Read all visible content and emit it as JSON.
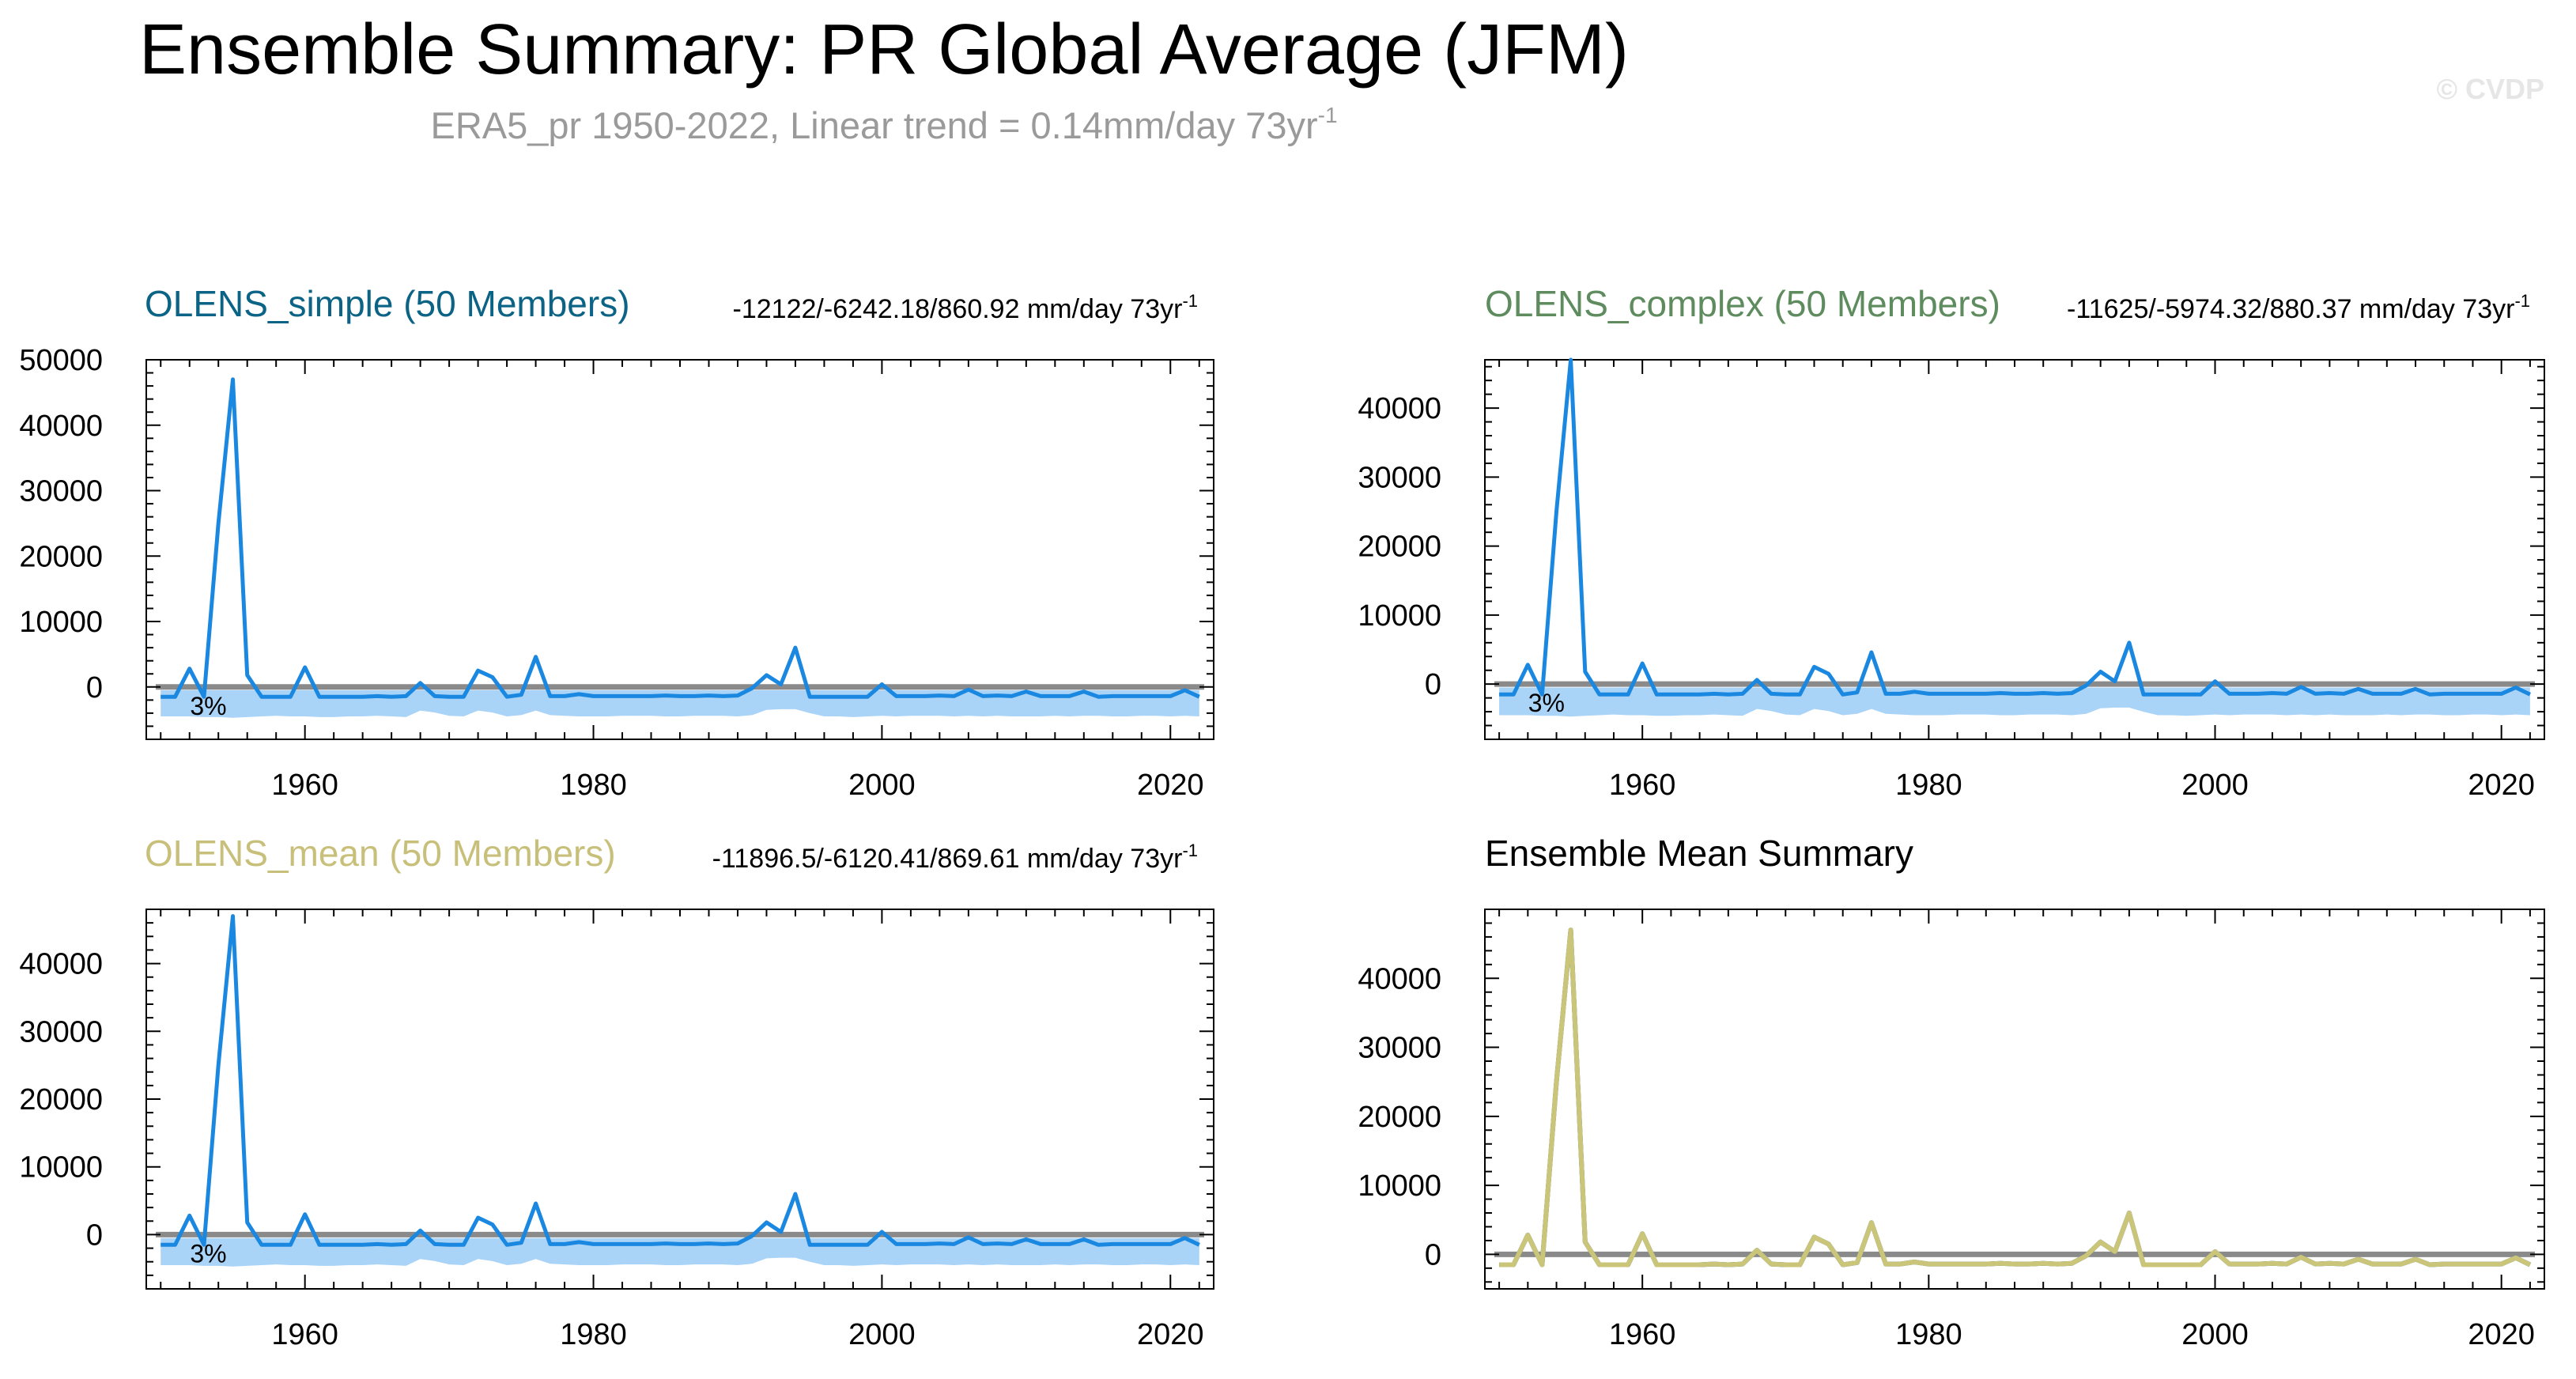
{
  "title": "Ensemble Summary: PR Global Average (JFM)",
  "subtitle": {
    "text": "ERA5_pr 1950-2022, Linear trend = 0.14mm/day 73yr",
    "sup": "-1"
  },
  "watermark": "© CVDP",
  "colors": {
    "simple": "#0b6386",
    "complex": "#5e8c5e",
    "mean": "#c8c07a",
    "mean_line": "#cbc57a",
    "obs_line": "#1a88e0",
    "band": "#a9d3f7",
    "zero_line": "#8a8a8a",
    "subtitle": "#9a9a9a",
    "watermark": "#e6e6e6"
  },
  "chart_data": [
    {
      "type": "line",
      "title": "OLENS_simple (50 Members)",
      "title_color": "simple",
      "trend_text": "-12122/-6242.18/860.92 mm/day 73yr",
      "trend_sup": "-1",
      "pct_label": "3%",
      "xlim": [
        1949,
        2023
      ],
      "ylim": [
        -8000,
        50000
      ],
      "yticks": [
        0,
        10000,
        20000,
        30000,
        40000,
        50000
      ],
      "xticks": [
        1960,
        1980,
        2000,
        2020
      ],
      "series": [
        {
          "name": "ERA5_pr",
          "source": "obs"
        }
      ]
    },
    {
      "type": "line",
      "title": "OLENS_complex (50 Members)",
      "title_color": "complex",
      "trend_text": "-11625/-5974.32/880.37 mm/day 73yr",
      "trend_sup": "-1",
      "pct_label": "3%",
      "xlim": [
        1949,
        2023
      ],
      "ylim": [
        -8000,
        47000
      ],
      "yticks": [
        0,
        10000,
        20000,
        30000,
        40000
      ],
      "xticks": [
        1960,
        1980,
        2000,
        2020
      ],
      "series": [
        {
          "name": "ERA5_pr",
          "source": "obs"
        }
      ]
    },
    {
      "type": "line",
      "title": "OLENS_mean (50 Members)",
      "title_color": "mean",
      "trend_text": "-11896.5/-6120.41/869.61 mm/day 73yr",
      "trend_sup": "-1",
      "pct_label": "3%",
      "xlim": [
        1949,
        2023
      ],
      "ylim": [
        -8000,
        48000
      ],
      "yticks": [
        0,
        10000,
        20000,
        30000,
        40000
      ],
      "xticks": [
        1960,
        1980,
        2000,
        2020
      ],
      "series": [
        {
          "name": "ERA5_pr",
          "source": "obs"
        }
      ]
    },
    {
      "type": "line",
      "title": "Ensemble Mean Summary",
      "title_color": "black",
      "trend_text": "",
      "trend_sup": "",
      "pct_label": "",
      "xlim": [
        1949,
        2023
      ],
      "ylim": [
        -5000,
        50000
      ],
      "yticks": [
        0,
        10000,
        20000,
        30000,
        40000
      ],
      "xticks": [
        1960,
        1980,
        2000,
        2020
      ],
      "series": [
        {
          "name": "OLENS_simple",
          "source": "obs",
          "color": "simple"
        },
        {
          "name": "OLENS_mean",
          "source": "obs",
          "color": "mean_line"
        }
      ]
    }
  ],
  "obs": {
    "x": [
      1950,
      1951,
      1952,
      1953,
      1954,
      1955,
      1956,
      1957,
      1958,
      1959,
      1960,
      1961,
      1962,
      1963,
      1964,
      1965,
      1966,
      1967,
      1968,
      1969,
      1970,
      1971,
      1972,
      1973,
      1974,
      1975,
      1976,
      1977,
      1978,
      1979,
      1980,
      1981,
      1982,
      1983,
      1984,
      1985,
      1986,
      1987,
      1988,
      1989,
      1990,
      1991,
      1992,
      1993,
      1994,
      1995,
      1996,
      1997,
      1998,
      1999,
      2000,
      2001,
      2002,
      2003,
      2004,
      2005,
      2006,
      2007,
      2008,
      2009,
      2010,
      2011,
      2012,
      2013,
      2014,
      2015,
      2016,
      2017,
      2018,
      2019,
      2020,
      2021,
      2022
    ],
    "y": [
      -1500,
      -1500,
      2800,
      -1500,
      25000,
      47000,
      1800,
      -1500,
      -1500,
      -1500,
      3000,
      -1500,
      -1500,
      -1500,
      -1500,
      -1400,
      -1500,
      -1400,
      600,
      -1400,
      -1500,
      -1500,
      2500,
      1500,
      -1500,
      -1200,
      4600,
      -1400,
      -1400,
      -1100,
      -1400,
      -1400,
      -1400,
      -1400,
      -1400,
      -1300,
      -1400,
      -1400,
      -1300,
      -1400,
      -1300,
      -200,
      1800,
      400,
      6000,
      -1500,
      -1500,
      -1500,
      -1500,
      -1500,
      400,
      -1400,
      -1400,
      -1400,
      -1300,
      -1400,
      -400,
      -1400,
      -1300,
      -1400,
      -700,
      -1400,
      -1400,
      -1400,
      -700,
      -1500,
      -1400,
      -1400,
      -1400,
      -1400,
      -1400,
      -500,
      -1500
    ]
  },
  "band": {
    "upper": -500,
    "lower": [
      -4500,
      -4500,
      -4500,
      -4600,
      -4600,
      -4700,
      -4600,
      -4500,
      -4400,
      -4500,
      -4500,
      -4600,
      -4600,
      -4500,
      -4500,
      -4400,
      -4500,
      -4600,
      -3600,
      -3900,
      -4400,
      -4500,
      -3600,
      -3900,
      -4500,
      -4300,
      -3600,
      -4300,
      -4400,
      -4500,
      -4500,
      -4500,
      -4400,
      -4400,
      -4400,
      -4500,
      -4500,
      -4400,
      -4400,
      -4400,
      -4500,
      -4300,
      -3500,
      -3400,
      -3400,
      -4000,
      -4500,
      -4500,
      -4600,
      -4500,
      -4400,
      -4500,
      -4400,
      -4400,
      -4400,
      -4500,
      -4400,
      -4500,
      -4400,
      -4500,
      -4500,
      -4500,
      -4400,
      -4500,
      -4400,
      -4400,
      -4500,
      -4500,
      -4400,
      -4400,
      -4500,
      -4400,
      -4500
    ]
  }
}
